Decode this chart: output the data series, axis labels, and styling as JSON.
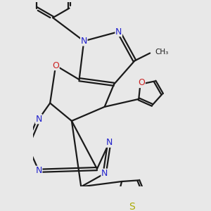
{
  "background_color": "#e8e8e8",
  "bond_color": "#1a1a1a",
  "n_color": "#2222cc",
  "o_color": "#cc2222",
  "s_color": "#aaaa00",
  "c_color": "#1a1a1a",
  "line_width": 1.6,
  "dbo": 0.055,
  "font_size": 9,
  "figsize": [
    3.0,
    3.0
  ],
  "dpi": 100,
  "xlim": [
    -2.0,
    3.5
  ],
  "ylim": [
    -3.8,
    3.2
  ]
}
